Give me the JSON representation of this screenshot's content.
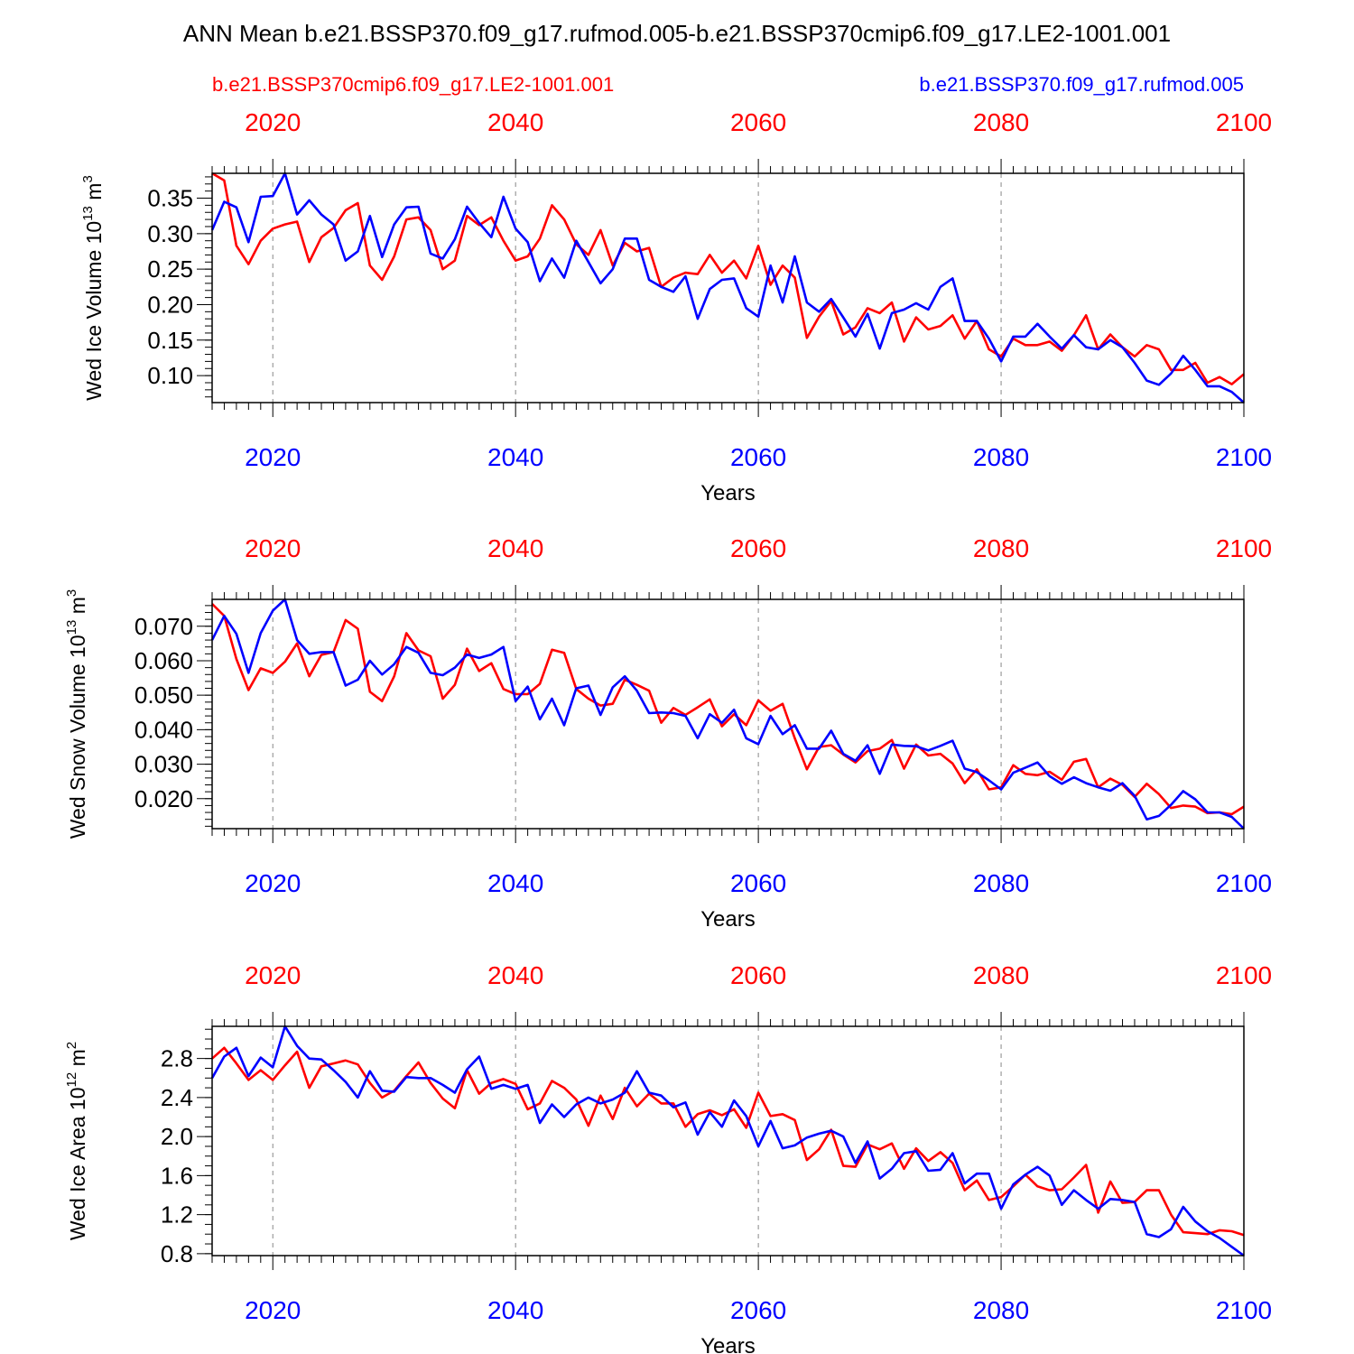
{
  "title": "ANN Mean b.e21.BSSP370.f09_g17.rufmod.005-b.e21.BSSP370cmip6.f09_g17.LE2-1001.001",
  "legend": {
    "red_label": "b.e21.BSSP370cmip6.f09_g17.LE2-1001.001",
    "blue_label": "b.e21.BSSP370.f09_g17.rufmod.005"
  },
  "colors": {
    "red": "#ff0000",
    "blue": "#0000ff",
    "axis": "#000000",
    "grid": "#888888"
  },
  "chart_data": [
    {
      "type": "line",
      "ylabel": "Wed Ice Volume 10",
      "ylabel_sup": "13",
      "ylabel_unit": " m",
      "ylabel_unit_sup": "3",
      "xlabel": "Years",
      "xlim": [
        2015,
        2100
      ],
      "ylim": [
        0.062,
        0.385
      ],
      "yticks": [
        0.1,
        0.15,
        0.2,
        0.25,
        0.3,
        0.35
      ],
      "yticklabels": [
        "0.10",
        "0.15",
        "0.20",
        "0.25",
        "0.30",
        "0.35"
      ],
      "yminor_step": 0.01,
      "xticks": [
        2020,
        2040,
        2060,
        2080,
        2100
      ],
      "xticklabels": [
        "2020",
        "2040",
        "2060",
        "2080",
        "2100"
      ],
      "x_start": 2015,
      "series": [
        {
          "name": "b.e21.BSSP370cmip6.f09_g17.LE2-1001.001",
          "color": "red",
          "values": [
            0.385,
            0.375,
            0.283,
            0.257,
            0.29,
            0.307,
            0.313,
            0.317,
            0.26,
            0.295,
            0.308,
            0.333,
            0.343,
            0.255,
            0.235,
            0.268,
            0.32,
            0.323,
            0.305,
            0.25,
            0.262,
            0.325,
            0.312,
            0.323,
            0.29,
            0.262,
            0.268,
            0.293,
            0.34,
            0.32,
            0.285,
            0.27,
            0.305,
            0.255,
            0.287,
            0.275,
            0.28,
            0.225,
            0.238,
            0.245,
            0.243,
            0.27,
            0.245,
            0.262,
            0.237,
            0.283,
            0.228,
            0.255,
            0.238,
            0.153,
            0.183,
            0.205,
            0.158,
            0.168,
            0.195,
            0.188,
            0.203,
            0.148,
            0.182,
            0.165,
            0.17,
            0.185,
            0.152,
            0.177,
            0.137,
            0.127,
            0.152,
            0.143,
            0.143,
            0.148,
            0.135,
            0.157,
            0.185,
            0.137,
            0.158,
            0.14,
            0.127,
            0.143,
            0.137,
            0.108,
            0.108,
            0.118,
            0.09,
            0.098,
            0.088,
            0.102
          ]
        },
        {
          "name": "b.e21.BSSP370.f09_g17.rufmod.005",
          "color": "blue",
          "values": [
            0.305,
            0.345,
            0.337,
            0.288,
            0.352,
            0.353,
            0.385,
            0.327,
            0.347,
            0.327,
            0.313,
            0.262,
            0.275,
            0.325,
            0.267,
            0.313,
            0.337,
            0.338,
            0.272,
            0.265,
            0.292,
            0.338,
            0.315,
            0.295,
            0.352,
            0.307,
            0.288,
            0.233,
            0.265,
            0.238,
            0.29,
            0.26,
            0.23,
            0.25,
            0.293,
            0.293,
            0.235,
            0.225,
            0.218,
            0.24,
            0.18,
            0.222,
            0.235,
            0.237,
            0.195,
            0.183,
            0.255,
            0.203,
            0.268,
            0.203,
            0.19,
            0.208,
            0.182,
            0.155,
            0.187,
            0.138,
            0.188,
            0.193,
            0.202,
            0.193,
            0.225,
            0.237,
            0.177,
            0.177,
            0.152,
            0.12,
            0.155,
            0.155,
            0.173,
            0.155,
            0.138,
            0.157,
            0.14,
            0.137,
            0.15,
            0.14,
            0.118,
            0.093,
            0.087,
            0.103,
            0.128,
            0.108,
            0.085,
            0.085,
            0.077,
            0.062
          ]
        }
      ]
    },
    {
      "type": "line",
      "ylabel": "Wed Snow Volume 10",
      "ylabel_sup": "13",
      "ylabel_unit": " m",
      "ylabel_unit_sup": "3",
      "xlabel": "Years",
      "xlim": [
        2015,
        2100
      ],
      "ylim": [
        0.0113,
        0.0778
      ],
      "yticks": [
        0.02,
        0.03,
        0.04,
        0.05,
        0.06,
        0.07
      ],
      "yticklabels": [
        "0.020",
        "0.030",
        "0.040",
        "0.050",
        "0.060",
        "0.070"
      ],
      "yminor_step": 0.002,
      "xticks": [
        2020,
        2040,
        2060,
        2080,
        2100
      ],
      "xticklabels": [
        "2020",
        "2040",
        "2060",
        "2080",
        "2100"
      ],
      "x_start": 2015,
      "series": [
        {
          "name": "b.e21.BSSP370cmip6.f09_g17.LE2-1001.001",
          "color": "red",
          "values": [
            0.0765,
            0.073,
            0.0605,
            0.0515,
            0.0578,
            0.0565,
            0.0597,
            0.065,
            0.0555,
            0.0617,
            0.0625,
            0.0718,
            0.0693,
            0.051,
            0.0483,
            0.0555,
            0.068,
            0.063,
            0.0613,
            0.049,
            0.053,
            0.0635,
            0.057,
            0.0593,
            0.0518,
            0.0503,
            0.0503,
            0.0533,
            0.0632,
            0.0623,
            0.0518,
            0.049,
            0.047,
            0.0475,
            0.0545,
            0.053,
            0.0513,
            0.042,
            0.0463,
            0.0443,
            0.0465,
            0.0488,
            0.041,
            0.0445,
            0.0413,
            0.0485,
            0.0455,
            0.0475,
            0.0375,
            0.0285,
            0.035,
            0.0355,
            0.0328,
            0.0305,
            0.0338,
            0.0345,
            0.037,
            0.0287,
            0.0357,
            0.0325,
            0.033,
            0.0302,
            0.0245,
            0.0285,
            0.0227,
            0.0233,
            0.0297,
            0.0272,
            0.0268,
            0.0278,
            0.0255,
            0.0307,
            0.0315,
            0.0233,
            0.0258,
            0.024,
            0.0205,
            0.0243,
            0.0213,
            0.0173,
            0.018,
            0.0177,
            0.0158,
            0.016,
            0.0155,
            0.0177
          ]
        },
        {
          "name": "b.e21.BSSP370.f09_g17.rufmod.005",
          "color": "blue",
          "values": [
            0.066,
            0.073,
            0.0678,
            0.0565,
            0.068,
            0.0745,
            0.0778,
            0.066,
            0.062,
            0.0625,
            0.0625,
            0.0528,
            0.0545,
            0.06,
            0.056,
            0.059,
            0.064,
            0.0623,
            0.0565,
            0.0558,
            0.058,
            0.0618,
            0.0608,
            0.0618,
            0.064,
            0.0483,
            0.0525,
            0.043,
            0.049,
            0.0413,
            0.052,
            0.0528,
            0.0443,
            0.0523,
            0.0555,
            0.0513,
            0.0448,
            0.045,
            0.0448,
            0.044,
            0.0375,
            0.0445,
            0.042,
            0.0458,
            0.0375,
            0.0358,
            0.044,
            0.0387,
            0.0413,
            0.0345,
            0.0345,
            0.0397,
            0.033,
            0.031,
            0.0355,
            0.0272,
            0.0357,
            0.0353,
            0.0352,
            0.034,
            0.0353,
            0.0368,
            0.0287,
            0.0277,
            0.0253,
            0.0227,
            0.0275,
            0.029,
            0.0305,
            0.0265,
            0.0243,
            0.0262,
            0.0245,
            0.0233,
            0.0223,
            0.0245,
            0.0208,
            0.014,
            0.015,
            0.0182,
            0.0222,
            0.0198,
            0.016,
            0.016,
            0.0147,
            0.0113
          ]
        }
      ]
    },
    {
      "type": "line",
      "ylabel": "Wed Ice Area 10",
      "ylabel_sup": "12",
      "ylabel_unit": " m",
      "ylabel_unit_sup": "2",
      "xlabel": "Years",
      "xlim": [
        2015,
        2100
      ],
      "ylim": [
        0.78,
        3.13
      ],
      "yticks": [
        0.8,
        1.2,
        1.6,
        2.0,
        2.4,
        2.8
      ],
      "yticklabels": [
        "0.8",
        "1.2",
        "1.6",
        "2.0",
        "2.4",
        "2.8"
      ],
      "yminor_step": 0.1,
      "xticks": [
        2020,
        2040,
        2060,
        2080,
        2100
      ],
      "xticklabels": [
        "2020",
        "2040",
        "2060",
        "2080",
        "2100"
      ],
      "x_start": 2015,
      "series": [
        {
          "name": "b.e21.BSSP370cmip6.f09_g17.LE2-1001.001",
          "color": "red",
          "values": [
            2.8,
            2.91,
            2.75,
            2.58,
            2.68,
            2.58,
            2.73,
            2.87,
            2.5,
            2.72,
            2.75,
            2.78,
            2.74,
            2.55,
            2.4,
            2.47,
            2.62,
            2.76,
            2.55,
            2.39,
            2.29,
            2.68,
            2.44,
            2.55,
            2.59,
            2.54,
            2.28,
            2.34,
            2.57,
            2.5,
            2.38,
            2.11,
            2.42,
            2.18,
            2.5,
            2.31,
            2.44,
            2.34,
            2.34,
            2.1,
            2.23,
            2.27,
            2.22,
            2.28,
            2.09,
            2.45,
            2.21,
            2.23,
            2.17,
            1.76,
            1.87,
            2.07,
            1.7,
            1.69,
            1.92,
            1.87,
            1.93,
            1.67,
            1.88,
            1.75,
            1.84,
            1.73,
            1.45,
            1.55,
            1.35,
            1.38,
            1.49,
            1.61,
            1.49,
            1.45,
            1.46,
            1.58,
            1.71,
            1.22,
            1.54,
            1.32,
            1.33,
            1.45,
            1.45,
            1.2,
            1.02,
            1.01,
            1.0,
            1.04,
            1.03,
            0.99
          ]
        },
        {
          "name": "b.e21.BSSP370.f09_g17.rufmod.005",
          "color": "blue",
          "values": [
            2.6,
            2.82,
            2.91,
            2.62,
            2.81,
            2.71,
            3.13,
            2.93,
            2.8,
            2.79,
            2.68,
            2.56,
            2.4,
            2.67,
            2.47,
            2.46,
            2.61,
            2.6,
            2.6,
            2.53,
            2.45,
            2.69,
            2.82,
            2.49,
            2.53,
            2.49,
            2.53,
            2.14,
            2.33,
            2.2,
            2.33,
            2.4,
            2.34,
            2.38,
            2.45,
            2.67,
            2.45,
            2.42,
            2.3,
            2.35,
            2.02,
            2.25,
            2.1,
            2.37,
            2.21,
            1.9,
            2.16,
            1.88,
            1.91,
            1.99,
            2.03,
            2.06,
            2.0,
            1.73,
            1.95,
            1.57,
            1.67,
            1.83,
            1.85,
            1.65,
            1.66,
            1.83,
            1.52,
            1.62,
            1.62,
            1.26,
            1.51,
            1.61,
            1.69,
            1.6,
            1.3,
            1.45,
            1.35,
            1.26,
            1.36,
            1.35,
            1.33,
            1.0,
            0.97,
            1.05,
            1.28,
            1.13,
            1.03,
            0.96,
            0.87,
            0.78
          ]
        }
      ]
    }
  ]
}
